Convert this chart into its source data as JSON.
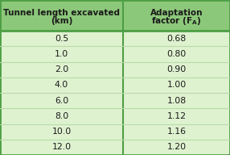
{
  "col1_header_line1": "Tunnel length excavated",
  "col1_header_line2": "(km)",
  "col2_header_line1": "Adaptation",
  "col2_header_line2": "factor (F",
  "col2_header_subscript": "A",
  "rows": [
    [
      "0.5",
      "0.68"
    ],
    [
      "1.0",
      "0.80"
    ],
    [
      "2.0",
      "0.90"
    ],
    [
      "4.0",
      "1.00"
    ],
    [
      "6.0",
      "1.08"
    ],
    [
      "8.0",
      "1.12"
    ],
    [
      "10.0",
      "1.16"
    ],
    [
      "12.0",
      "1.20"
    ]
  ],
  "header_bg": "#8cc87a",
  "row_bg": "#dff2d0",
  "border_color": "#4d9e44",
  "col_divider_color": "#4d9e44",
  "row_divider_color": "#b8dba8",
  "header_text_color": "#1a1a1a",
  "row_text_color": "#1a1a1a",
  "fig_width": 2.86,
  "fig_height": 1.92,
  "dpi": 100
}
